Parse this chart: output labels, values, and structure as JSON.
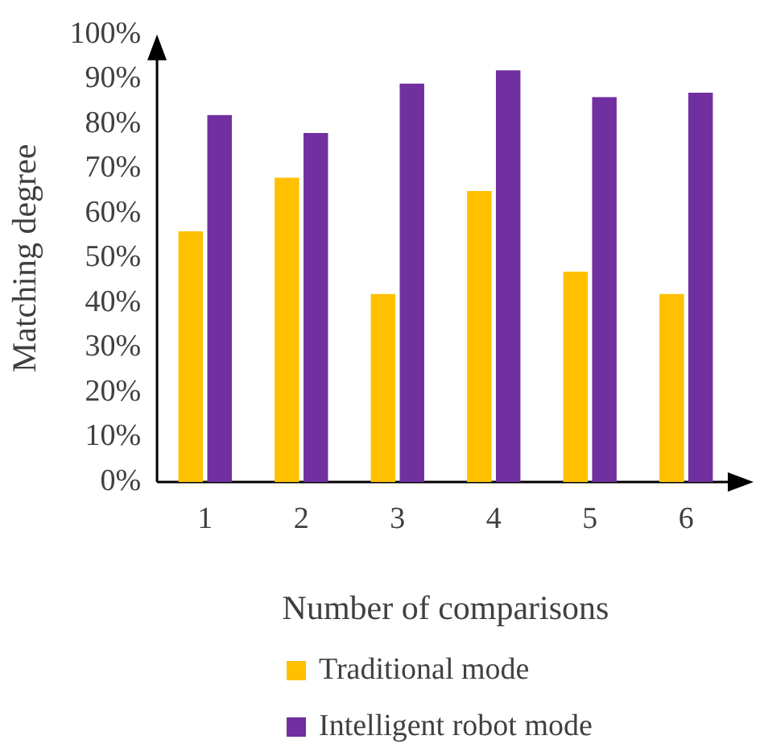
{
  "chart_data": {
    "type": "bar",
    "xlabel": "Number of comparisons",
    "ylabel": "Matching degree",
    "categories": [
      "1",
      "2",
      "3",
      "4",
      "5",
      "6"
    ],
    "series": [
      {
        "name": "Traditional mode",
        "color": "#ffc000",
        "values": [
          56,
          68,
          42,
          65,
          47,
          42
        ]
      },
      {
        "name": "Intelligent robot mode",
        "color": "#7030a0",
        "values": [
          82,
          78,
          89,
          92,
          86,
          87
        ]
      }
    ],
    "ylim": [
      0,
      100
    ],
    "yticks": [
      {
        "value": 0,
        "label": "0%"
      },
      {
        "value": 10,
        "label": "10%"
      },
      {
        "value": 20,
        "label": "20%"
      },
      {
        "value": 30,
        "label": "30%"
      },
      {
        "value": 40,
        "label": "40%"
      },
      {
        "value": 50,
        "label": "50%"
      },
      {
        "value": 60,
        "label": "60%"
      },
      {
        "value": 70,
        "label": "70%"
      },
      {
        "value": 80,
        "label": "80%"
      },
      {
        "value": 90,
        "label": "90%"
      },
      {
        "value": 100,
        "label": "100%"
      }
    ],
    "grid": false,
    "legend": "bottom"
  }
}
